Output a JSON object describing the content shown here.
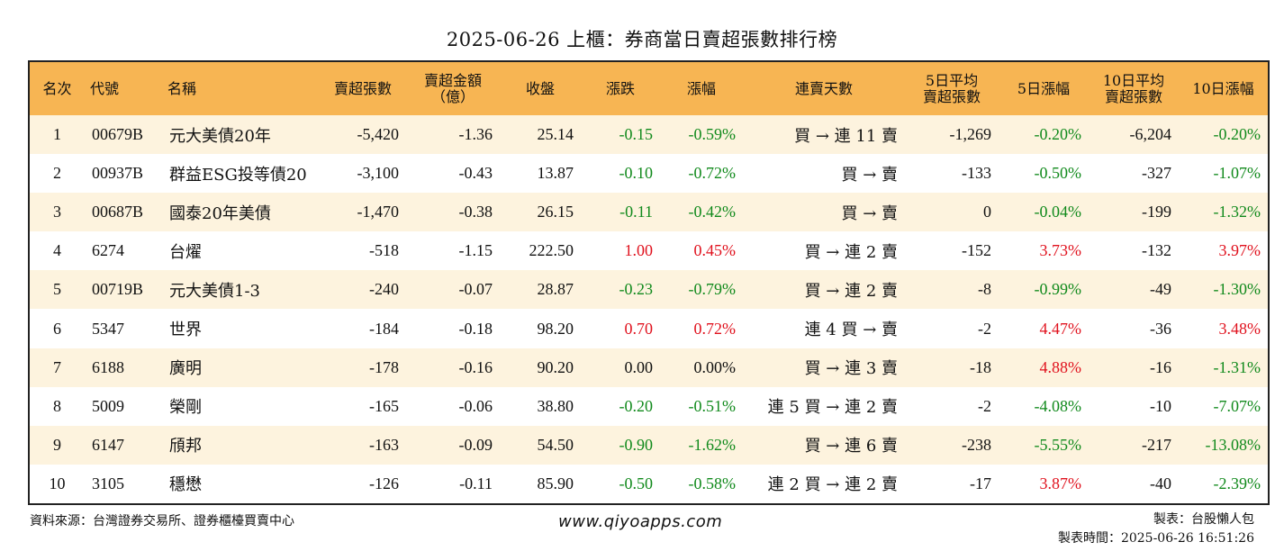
{
  "title": "2025-06-26 上櫃：券商當日賣超張數排行榜",
  "headers": [
    {
      "line1": "名次",
      "line2": ""
    },
    {
      "line1": "代號",
      "line2": ""
    },
    {
      "line1": "名稱",
      "line2": ""
    },
    {
      "line1": "賣超張數",
      "line2": ""
    },
    {
      "line1": "賣超金額",
      "line2": "（億）"
    },
    {
      "line1": "收盤",
      "line2": ""
    },
    {
      "line1": "漲跌",
      "line2": ""
    },
    {
      "line1": "漲幅",
      "line2": ""
    },
    {
      "line1": "連賣天數",
      "line2": ""
    },
    {
      "line1": "5日平均",
      "line2": "賣超張數"
    },
    {
      "line1": "5日漲幅",
      "line2": ""
    },
    {
      "line1": "10日平均",
      "line2": "賣超張數"
    },
    {
      "line1": "10日漲幅",
      "line2": ""
    }
  ],
  "rows": [
    {
      "rank": "1",
      "code": "00679B",
      "name": "元大美債20年",
      "sell_lots": "-5,420",
      "sell_amount": "-1.36",
      "close": "25.14",
      "change": "-0.15",
      "pct": "-0.59%",
      "streak": "買 → 連 11 賣",
      "avg5": "-1,269",
      "pct5": "-0.20%",
      "avg10": "-6,204",
      "pct10": "-0.20%"
    },
    {
      "rank": "2",
      "code": "00937B",
      "name": "群益ESG投等債20",
      "sell_lots": "-3,100",
      "sell_amount": "-0.43",
      "close": "13.87",
      "change": "-0.10",
      "pct": "-0.72%",
      "streak": "買 → 賣",
      "avg5": "-133",
      "pct5": "-0.50%",
      "avg10": "-327",
      "pct10": "-1.07%"
    },
    {
      "rank": "3",
      "code": "00687B",
      "name": "國泰20年美債",
      "sell_lots": "-1,470",
      "sell_amount": "-0.38",
      "close": "26.15",
      "change": "-0.11",
      "pct": "-0.42%",
      "streak": "買 → 賣",
      "avg5": "0",
      "pct5": "-0.04%",
      "avg10": "-199",
      "pct10": "-1.32%"
    },
    {
      "rank": "4",
      "code": "6274",
      "name": "台燿",
      "sell_lots": "-518",
      "sell_amount": "-1.15",
      "close": "222.50",
      "change": "1.00",
      "pct": "0.45%",
      "streak": "買 → 連 2 賣",
      "avg5": "-152",
      "pct5": "3.73%",
      "avg10": "-132",
      "pct10": "3.97%"
    },
    {
      "rank": "5",
      "code": "00719B",
      "name": "元大美債1-3",
      "sell_lots": "-240",
      "sell_amount": "-0.07",
      "close": "28.87",
      "change": "-0.23",
      "pct": "-0.79%",
      "streak": "買 → 連 2 賣",
      "avg5": "-8",
      "pct5": "-0.99%",
      "avg10": "-49",
      "pct10": "-1.30%"
    },
    {
      "rank": "6",
      "code": "5347",
      "name": "世界",
      "sell_lots": "-184",
      "sell_amount": "-0.18",
      "close": "98.20",
      "change": "0.70",
      "pct": "0.72%",
      "streak": "連 4 買 → 賣",
      "avg5": "-2",
      "pct5": "4.47%",
      "avg10": "-36",
      "pct10": "3.48%"
    },
    {
      "rank": "7",
      "code": "6188",
      "name": "廣明",
      "sell_lots": "-178",
      "sell_amount": "-0.16",
      "close": "90.20",
      "change": "0.00",
      "pct": "0.00%",
      "streak": "買 → 連 3 賣",
      "avg5": "-18",
      "pct5": "4.88%",
      "avg10": "-16",
      "pct10": "-1.31%"
    },
    {
      "rank": "8",
      "code": "5009",
      "name": "榮剛",
      "sell_lots": "-165",
      "sell_amount": "-0.06",
      "close": "38.80",
      "change": "-0.20",
      "pct": "-0.51%",
      "streak": "連 5 買 → 連 2 賣",
      "avg5": "-2",
      "pct5": "-4.08%",
      "avg10": "-10",
      "pct10": "-7.07%"
    },
    {
      "rank": "9",
      "code": "6147",
      "name": "頎邦",
      "sell_lots": "-163",
      "sell_amount": "-0.09",
      "close": "54.50",
      "change": "-0.90",
      "pct": "-1.62%",
      "streak": "買 → 連 6 賣",
      "avg5": "-238",
      "pct5": "-5.55%",
      "avg10": "-217",
      "pct10": "-13.08%"
    },
    {
      "rank": "10",
      "code": "3105",
      "name": "穩懋",
      "sell_lots": "-126",
      "sell_amount": "-0.11",
      "close": "85.90",
      "change": "-0.50",
      "pct": "-0.58%",
      "streak": "連 2 買 → 連 2 賣",
      "avg5": "-17",
      "pct5": "3.87%",
      "avg10": "-40",
      "pct10": "-2.39%"
    }
  ],
  "footer": {
    "source": "資料來源：台灣證券交易所、證券櫃檯買賣中心",
    "site": "www.qiyoapps.com",
    "maker": "製表：台股懶人包",
    "time": "製表時間：2025-06-26 16:51:26"
  },
  "colors": {
    "header_bg": "#f7b553",
    "row_alt": "#fdf3de",
    "up": "#e0111d",
    "down": "#118a1c"
  }
}
